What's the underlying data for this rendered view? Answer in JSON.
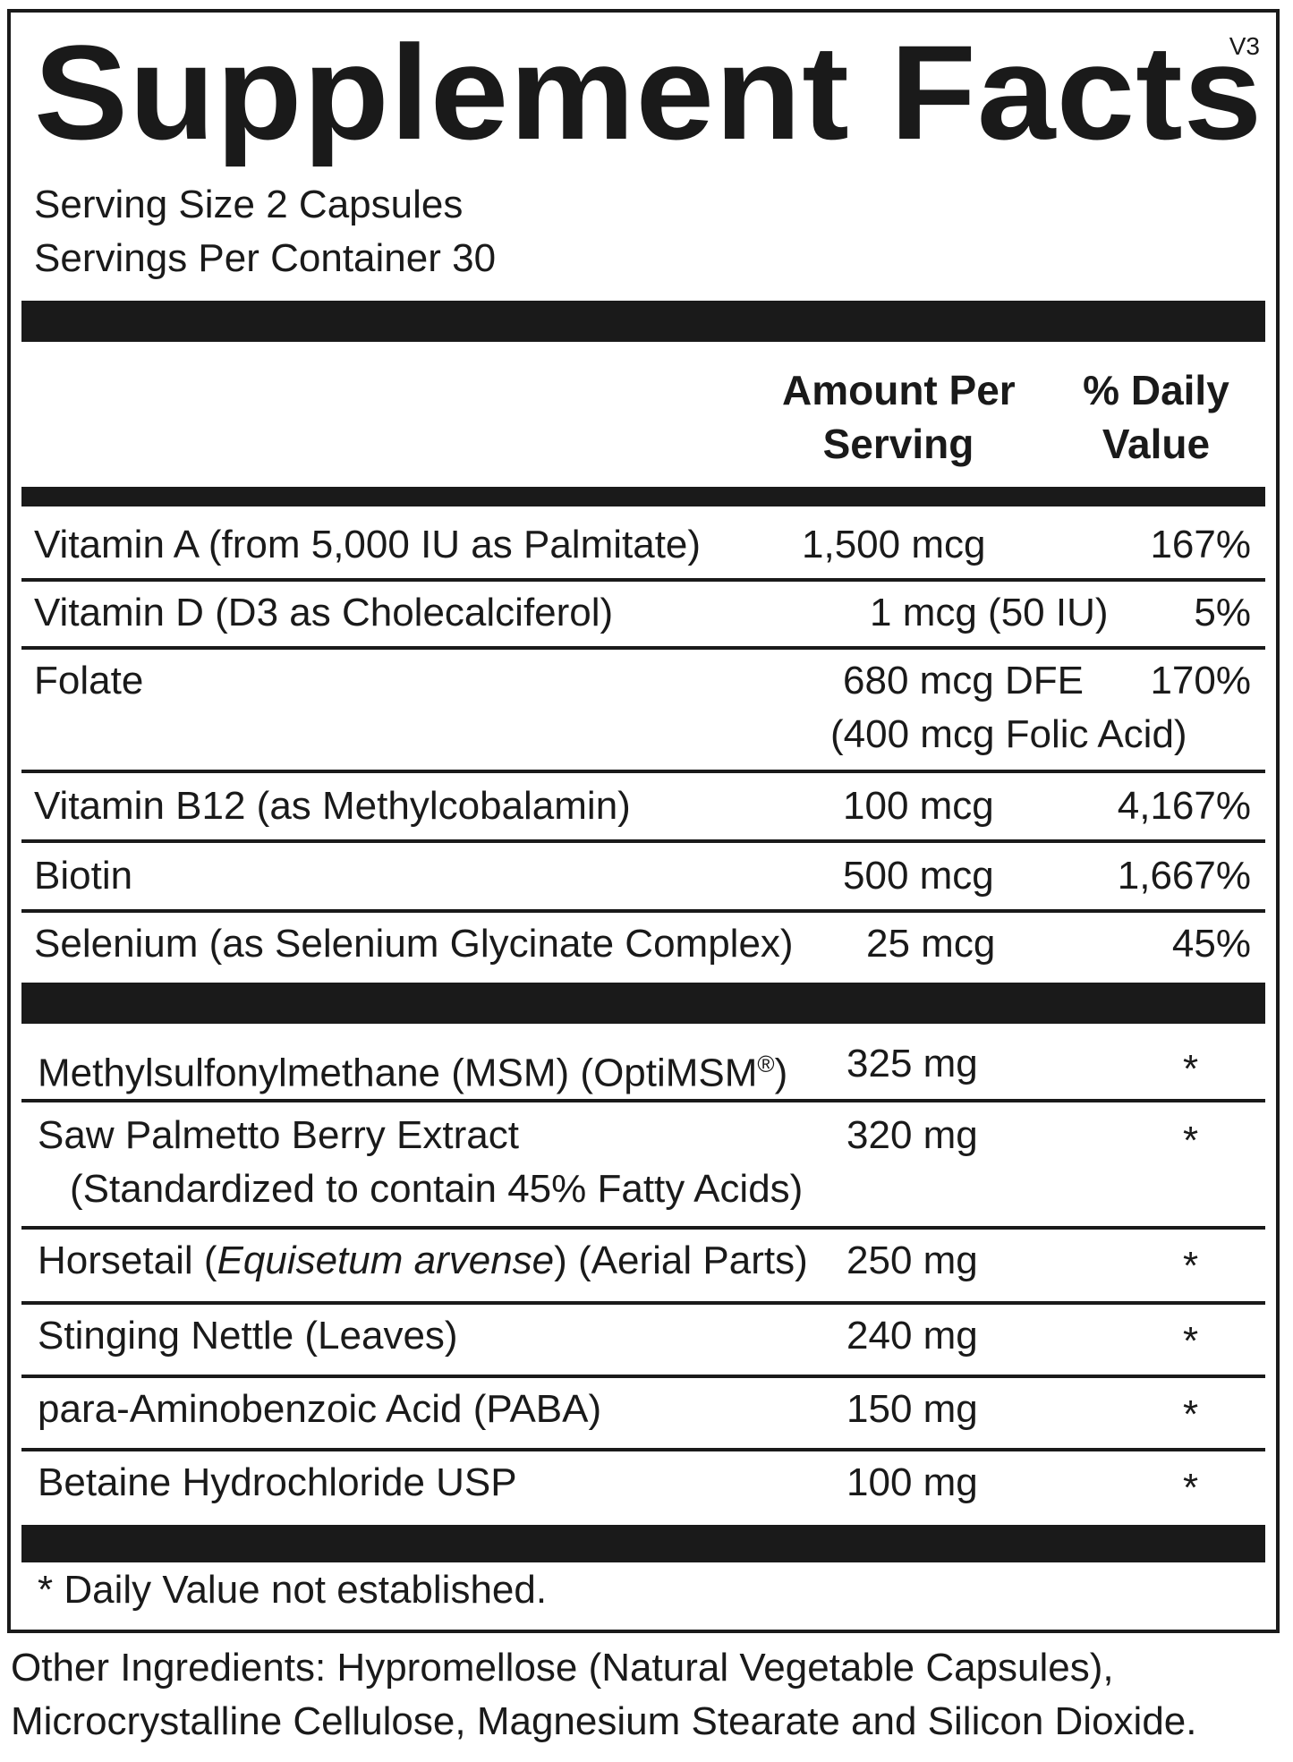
{
  "label": {
    "title": "Supplement Facts",
    "version": "V3",
    "serving_size": "Serving Size 2 Capsules",
    "servings_per_container": "Servings Per Container 30",
    "header_amount_line1": "Amount Per",
    "header_amount_line2": "Serving",
    "header_dv_line1": "% Daily",
    "header_dv_line2": "Value"
  },
  "vitamins": [
    {
      "name": "Vitamin A (from 5,000 IU as Palmitate)",
      "amount": "1,500 mcg",
      "dv": "167%"
    },
    {
      "name": "Vitamin D (D3 as Cholecalciferol)",
      "amount": "1 mcg (50 IU)",
      "dv": "5%"
    },
    {
      "name": "Folate",
      "amount": "680 mcg DFE",
      "amount2": "(400 mcg Folic Acid)",
      "dv": "170%"
    },
    {
      "name": "Vitamin B12 (as Methylcobalamin)",
      "amount": "100 mcg",
      "dv": "4,167%"
    },
    {
      "name": "Biotin",
      "amount": "500 mcg",
      "dv": "1,667%"
    },
    {
      "name": "Selenium (as Selenium Glycinate Complex)",
      "amount": "25 mcg",
      "dv": "45%"
    }
  ],
  "others": [
    {
      "name": "Methylsulfonylmethane (MSM) (OptiMSM",
      "reg": "®",
      "name_end": ")",
      "amount": "325 mg",
      "dv": "*"
    },
    {
      "name": "Saw Palmetto Berry Extract",
      "name2": "(Standardized to contain 45% Fatty Acids)",
      "amount": "320 mg",
      "dv": "*"
    },
    {
      "name_pre": "Horsetail (",
      "name_italic": "Equisetum arvense",
      "name_post": ") (Aerial Parts)",
      "amount": "250 mg",
      "dv": "*"
    },
    {
      "name": "Stinging Nettle (Leaves)",
      "amount": "240 mg",
      "dv": "*"
    },
    {
      "name": "para-Aminobenzoic Acid (PABA)",
      "amount": "150 mg",
      "dv": "*"
    },
    {
      "name": "Betaine Hydrochloride USP",
      "amount": "100 mg",
      "dv": "*"
    }
  ],
  "footnote": "* Daily Value not established.",
  "other_ingredients_line1": "Other Ingredients: Hypromellose (Natural Vegetable Capsules),",
  "other_ingredients_line2": "Microcrystalline Cellulose, Magnesium Stearate and Silicon Dioxide."
}
